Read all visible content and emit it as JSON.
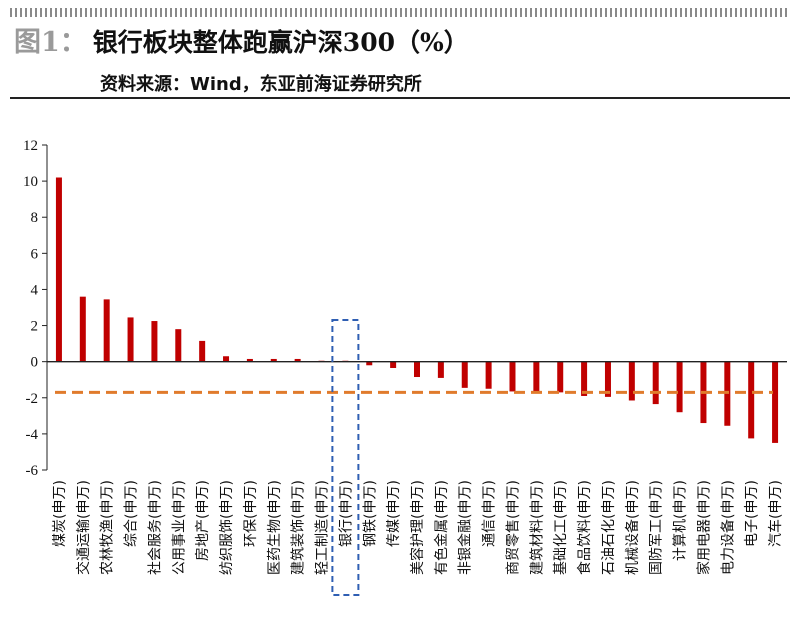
{
  "header": {
    "figure_label": "图1：",
    "title": "银行板块整体跑赢沪深300（%）",
    "source": "资料来源：Wind，东亚前海证券研究所"
  },
  "colors": {
    "bar": "#c00000",
    "reference_line": "#e07b2c",
    "highlight_box": "#2f5fb3"
  },
  "chart_data": {
    "type": "bar",
    "title": "银行板块整体跑赢沪深300（%）",
    "xlabel": "",
    "ylabel": "",
    "ylim": [
      -6,
      12
    ],
    "yticks": [
      -6,
      -4,
      -2,
      0,
      2,
      4,
      6,
      8,
      10,
      12
    ],
    "grid": false,
    "reference_line": {
      "value": -1.7,
      "style": "dashed"
    },
    "highlight_category": "银行(申万)",
    "categories": [
      "煤炭(申万)",
      "交通运输(申万)",
      "农林牧渔(申万)",
      "综合(申万)",
      "社会服务(申万)",
      "公用事业(申万)",
      "房地产(申万)",
      "纺织服饰(申万)",
      "环保(申万)",
      "医药生物(申万)",
      "建筑装饰(申万)",
      "轻工制造(申万)",
      "银行(申万)",
      "钢铁(申万)",
      "传媒(申万)",
      "美容护理(申万)",
      "有色金属(申万)",
      "非银金融(申万)",
      "通信(申万)",
      "商贸零售(申万)",
      "建筑材料(申万)",
      "基础化工(申万)",
      "食品饮料(申万)",
      "石油石化(申万)",
      "机械设备(申万)",
      "国防军工(申万)",
      "计算机(申万)",
      "家用电器(申万)",
      "电力设备(申万)",
      "电子(申万)",
      "汽车(申万)"
    ],
    "values": [
      10.2,
      3.6,
      3.45,
      2.45,
      2.25,
      1.8,
      1.15,
      0.3,
      0.15,
      0.15,
      0.15,
      0.05,
      0.05,
      -0.2,
      -0.35,
      -0.85,
      -0.9,
      -1.45,
      -1.5,
      -1.65,
      -1.65,
      -1.7,
      -1.9,
      -1.95,
      -2.15,
      -2.35,
      -2.8,
      -3.4,
      -3.55,
      -4.25,
      -4.5
    ]
  }
}
